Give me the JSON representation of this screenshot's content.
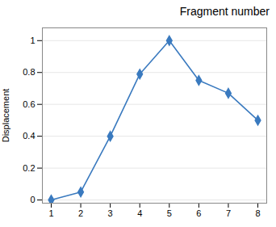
{
  "chart_data": {
    "type": "line",
    "title": "Fragment number",
    "ylabel": "Displacement",
    "x": [
      1,
      2,
      3,
      4,
      5,
      6,
      7,
      8
    ],
    "values": [
      0.0,
      0.05,
      0.4,
      0.79,
      1.0,
      0.75,
      0.67,
      0.5
    ],
    "color": "#3a7abf",
    "marker": "diamond",
    "xlim": [
      0.7,
      8.3
    ],
    "ylim": [
      -0.02,
      1.08
    ],
    "xticks": [
      1,
      2,
      3,
      4,
      5,
      6,
      7,
      8
    ],
    "yticks": [
      0,
      0.2,
      0.4,
      0.6,
      0.8,
      1
    ],
    "grid": true
  }
}
